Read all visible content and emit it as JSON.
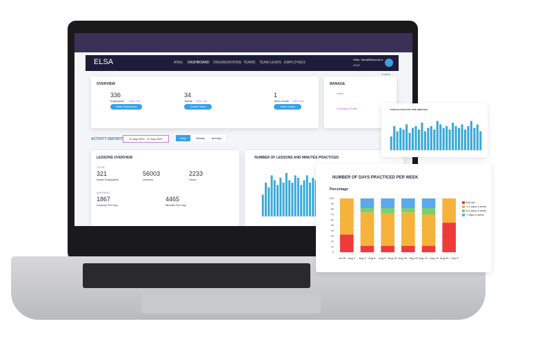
{
  "nav": {
    "logo": "ELSA",
    "items": [
      "ATAG",
      "DASHBOARD",
      "ORGANIZATIONS",
      "TEAMS",
      "TEAM LEADS",
      "EMPLOYEES"
    ],
    "user": "Hello, Sam@Elsacorp.io",
    "org": "ATAG",
    "lang": "English"
  },
  "overview": {
    "title": "OVERVIEW",
    "stats": [
      {
        "value": 336,
        "label": "Employees",
        "link": "View List",
        "button": "Invite Employees"
      },
      {
        "value": 34,
        "label": "Teams",
        "link": "View List",
        "button": "Create Team"
      },
      {
        "value": 1,
        "label": "Team Leads",
        "link": "View List",
        "button": "Invite Leads"
      }
    ]
  },
  "manage": {
    "title": "MANAGE",
    "links": [
      "Users",
      "Company Profile"
    ]
  },
  "activity": {
    "title": "ACTIVITY REPORTS",
    "date_range": "21 Aug 2020 - 27 Aug 2020",
    "tabs": [
      "Daily",
      "Weekly",
      "Monthly"
    ]
  },
  "lessons_overview": {
    "title": "LESSONS OVERVIEW",
    "total_label": "TOTAL",
    "stats": [
      {
        "value": 321,
        "label": "Active Employees"
      },
      {
        "value": 56003,
        "label": "Lessons"
      },
      {
        "value": 2233,
        "label": "Hours"
      }
    ],
    "average_label": "AVERAGE",
    "averages": [
      {
        "value": 1867,
        "label": "Lessons Per Day"
      },
      {
        "value": 4465,
        "label": "Minutes Per Day"
      }
    ]
  },
  "chart_data": [
    {
      "type": "bar",
      "title": "NUMBER OF LESSONS AND MINUTES PRACTICED",
      "color": "#3aa9d9",
      "values": [
        45,
        70,
        60,
        85,
        75,
        65,
        80,
        70,
        90,
        75,
        70,
        85,
        80,
        65,
        75,
        85,
        70,
        80,
        75,
        90,
        70,
        80
      ],
      "ylim": [
        0,
        100
      ]
    },
    {
      "type": "bar",
      "title": "AVERAGE PRACTICE TIME (MINUTES)",
      "color": "#3aa9d9",
      "values": [
        40,
        70,
        55,
        65,
        60,
        75,
        50,
        65,
        70,
        60,
        80,
        55,
        65,
        70,
        60,
        85,
        75,
        65,
        70,
        60,
        80,
        70,
        65,
        75,
        60,
        70,
        85,
        65,
        75,
        55
      ],
      "ylim": [
        0,
        100
      ]
    },
    {
      "type": "stacked_bar",
      "title": "NUMBER OF DAYS PRACTICED PER WEEK",
      "y_label": "Percentage",
      "categories": [
        "Jul 26 - Aug 1",
        "Aug 2 - Aug 8",
        "Aug 9 - Aug 15",
        "Aug 16 - Aug 22",
        "Aug 23 - Aug 29",
        "Aug 30 - Sep 5"
      ],
      "series": [
        {
          "name": "Not yet",
          "color": "#f03a3a",
          "values": [
            33,
            12,
            12,
            12,
            12,
            55
          ]
        },
        {
          "name": "1-4 days a week",
          "color": "#f7b23b",
          "values": [
            67,
            62,
            60,
            62,
            58,
            45
          ]
        },
        {
          "name": "5-6 days a week",
          "color": "#7ccf6b",
          "values": [
            0,
            8,
            10,
            8,
            12,
            0
          ]
        },
        {
          "name": "7 days a week",
          "color": "#5aa9ec",
          "values": [
            0,
            18,
            18,
            18,
            18,
            0
          ]
        }
      ],
      "ylim": [
        0,
        100
      ],
      "yticks": [
        0,
        10,
        20,
        30,
        40,
        50,
        60,
        70,
        80,
        90,
        100
      ]
    }
  ]
}
